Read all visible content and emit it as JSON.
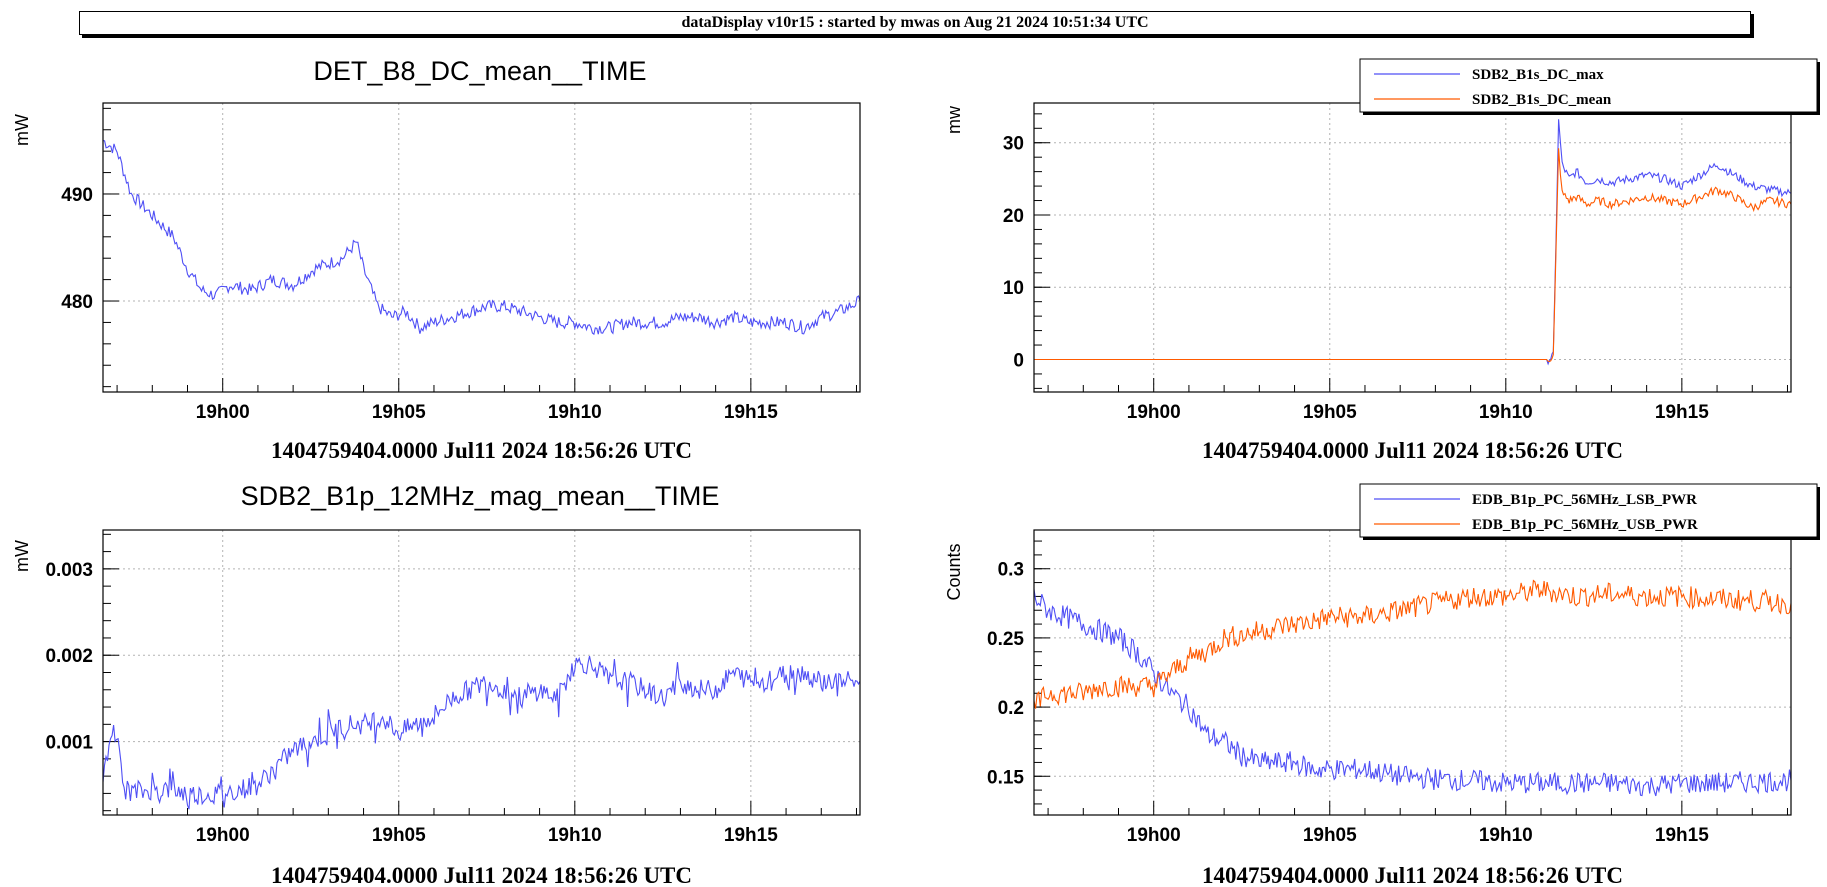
{
  "banner": "dataDisplay v10r15 : started by mwas on Aug 21 2024 10:51:34 UTC",
  "colors": {
    "blue": "#4f4ff5",
    "orange": "#ff5a00",
    "grid": "#b3b3b3"
  },
  "chart_data": [
    {
      "type": "line",
      "title": "DET_B8_DC_mean__TIME",
      "ylabel": "mW",
      "xlabel": "1404759404.0000 Jul11 2024 18:56:26 UTC",
      "x_ticks": [
        "19h00",
        "19h05",
        "19h10",
        "19h15"
      ],
      "x_range_min": [
        -3.4,
        18.1
      ],
      "y_ticks": [
        480,
        490
      ],
      "y_tick_labels": [
        "480",
        "490"
      ],
      "ylim": [
        471.5,
        498.5
      ],
      "legend": [],
      "series": [
        {
          "name": "DET_B8_DC_mean",
          "color": "#4f4ff5",
          "x": [
            -3.4,
            -3.0,
            -2.6,
            -2.0,
            -1.4,
            -1.0,
            -0.6,
            -0.2,
            0.2,
            0.8,
            1.4,
            2.0,
            2.6,
            3.0,
            3.4,
            3.8,
            4.0,
            4.4,
            4.8,
            5.2,
            5.6,
            6.0,
            6.5,
            7.0,
            7.5,
            8.0,
            8.5,
            9.0,
            9.5,
            10.0,
            10.5,
            11.0,
            11.5,
            12.0,
            12.5,
            13.0,
            13.5,
            14.0,
            14.5,
            15.0,
            15.5,
            16.0,
            16.5,
            17.0,
            17.5,
            18.1
          ],
          "y": [
            495,
            494,
            490,
            488,
            486,
            483,
            481,
            480.5,
            481.5,
            481,
            482,
            481.5,
            483,
            483.5,
            484,
            485.5,
            483,
            479.5,
            478.5,
            479,
            477.5,
            478,
            478.5,
            479,
            479.5,
            479.5,
            479,
            478.5,
            478,
            478,
            477.5,
            477.5,
            478,
            478,
            478,
            478.5,
            478.5,
            478,
            478.5,
            478,
            478,
            478,
            477.5,
            478.5,
            479,
            480
          ]
        }
      ]
    },
    {
      "type": "line",
      "title": "",
      "ylabel": "mw",
      "xlabel": "1404759404.0000 Jul11 2024 18:56:26 UTC",
      "x_ticks": [
        "19h00",
        "19h05",
        "19h10",
        "19h15"
      ],
      "x_range_min": [
        -3.4,
        18.1
      ],
      "y_ticks": [
        0,
        10,
        20,
        30
      ],
      "y_tick_labels": [
        "0",
        "10",
        "20",
        "30"
      ],
      "ylim": [
        -4.5,
        35.5
      ],
      "legend": [
        "SDB2_B1s_DC_max",
        "SDB2_B1s_DC_mean"
      ],
      "series": [
        {
          "name": "SDB2_B1s_DC_max",
          "color": "#4f4ff5",
          "x": [
            -3.4,
            11.2,
            11.35,
            11.5,
            11.6,
            11.8,
            12.0,
            12.3,
            12.6,
            13.0,
            13.5,
            14.0,
            14.5,
            15.0,
            15.5,
            16.0,
            16.5,
            17.0,
            17.5,
            18.1
          ],
          "y": [
            0,
            0,
            0.5,
            33,
            27,
            25,
            26,
            24.5,
            25,
            24.5,
            25,
            25.5,
            25,
            24,
            25.5,
            27,
            25.5,
            24,
            23.5,
            23
          ]
        },
        {
          "name": "SDB2_B1s_DC_mean",
          "color": "#ff5a00",
          "x": [
            -3.4,
            11.2,
            11.35,
            11.5,
            11.6,
            11.8,
            12.0,
            12.3,
            12.6,
            13.0,
            13.5,
            14.0,
            14.5,
            15.0,
            15.5,
            16.0,
            16.5,
            17.0,
            17.5,
            18.1
          ],
          "y": [
            0,
            0,
            0.5,
            29,
            23,
            22,
            22.5,
            21.5,
            22,
            21.5,
            22,
            22.5,
            22,
            21.5,
            22.5,
            23.5,
            22.5,
            21,
            22,
            21.5
          ]
        }
      ]
    },
    {
      "type": "line",
      "title": "SDB2_B1p_12MHz_mag_mean__TIME",
      "ylabel": "mW",
      "xlabel": "1404759404.0000 Jul11 2024 18:56:26 UTC",
      "x_ticks": [
        "19h00",
        "19h05",
        "19h10",
        "19h15"
      ],
      "x_range_min": [
        -3.4,
        18.1
      ],
      "y_ticks": [
        0.001,
        0.002,
        0.003
      ],
      "y_tick_labels": [
        "0.001",
        "0.002",
        "0.003"
      ],
      "ylim": [
        0.00015,
        0.00345
      ],
      "legend": [],
      "series": [
        {
          "name": "SDB2_B1p_12MHz_mag_mean",
          "color": "#4f4ff5",
          "x": [
            -3.4,
            -3.1,
            -2.8,
            -2.4,
            -2.0,
            -1.5,
            -1.0,
            -0.5,
            0.0,
            0.5,
            1.0,
            1.5,
            2.0,
            2.5,
            3.0,
            3.5,
            4.0,
            4.5,
            5.0,
            5.5,
            6.0,
            6.5,
            7.0,
            7.5,
            8.0,
            8.5,
            9.0,
            9.5,
            10.0,
            10.5,
            11.0,
            11.5,
            12.0,
            12.5,
            13.0,
            13.5,
            14.0,
            14.5,
            15.0,
            15.5,
            16.0,
            16.5,
            17.0,
            17.5,
            18.1
          ],
          "y": [
            0.0005,
            0.0013,
            0.00045,
            0.0004,
            0.00045,
            0.00045,
            0.0004,
            0.00038,
            0.0004,
            0.00045,
            0.0005,
            0.0007,
            0.0009,
            0.001,
            0.0011,
            0.0012,
            0.0012,
            0.0013,
            0.0011,
            0.0012,
            0.0013,
            0.0015,
            0.0016,
            0.0017,
            0.0016,
            0.0015,
            0.0016,
            0.0015,
            0.0019,
            0.0019,
            0.0017,
            0.0017,
            0.0016,
            0.0015,
            0.0017,
            0.0016,
            0.0016,
            0.0018,
            0.0017,
            0.0017,
            0.0018,
            0.0018,
            0.0017,
            0.0017,
            0.0017
          ]
        }
      ]
    },
    {
      "type": "line",
      "title": "",
      "ylabel": "Counts",
      "xlabel": "1404759404.0000 Jul11 2024 18:56:26 UTC",
      "x_ticks": [
        "19h00",
        "19h05",
        "19h10",
        "19h15"
      ],
      "x_range_min": [
        -3.4,
        18.1
      ],
      "y_ticks": [
        0.15,
        0.2,
        0.25,
        0.3
      ],
      "y_tick_labels": [
        "0.15",
        "0.2",
        "0.25",
        "0.3"
      ],
      "ylim": [
        0.122,
        0.328
      ],
      "legend": [
        "EDB_B1p_PC_56MHz_LSB_PWR",
        "EDB_B1p_PC_56MHz_USB_PWR"
      ],
      "series": [
        {
          "name": "EDB_B1p_PC_56MHz_LSB_PWR",
          "color": "#4f4ff5",
          "x": [
            -3.4,
            -3.0,
            -2.5,
            -2.0,
            -1.5,
            -1.0,
            -0.5,
            0.0,
            0.5,
            1.0,
            1.5,
            2.0,
            2.5,
            3.0,
            3.5,
            4.0,
            4.5,
            5.0,
            5.5,
            6.0,
            7.0,
            8.0,
            9.0,
            10.0,
            11.0,
            12.0,
            13.0,
            14.0,
            15.0,
            16.0,
            17.0,
            18.1
          ],
          "y": [
            0.28,
            0.27,
            0.265,
            0.26,
            0.255,
            0.25,
            0.24,
            0.225,
            0.21,
            0.2,
            0.18,
            0.175,
            0.165,
            0.16,
            0.16,
            0.16,
            0.155,
            0.155,
            0.155,
            0.155,
            0.15,
            0.148,
            0.147,
            0.145,
            0.145,
            0.145,
            0.145,
            0.143,
            0.145,
            0.145,
            0.146,
            0.147
          ]
        },
        {
          "name": "EDB_B1p_PC_56MHz_USB_PWR",
          "color": "#ff5a00",
          "x": [
            -3.4,
            -3.0,
            -2.5,
            -2.0,
            -1.5,
            -1.0,
            -0.5,
            0.0,
            0.5,
            1.0,
            1.5,
            2.0,
            2.5,
            3.0,
            3.5,
            4.0,
            4.5,
            5.0,
            5.5,
            6.0,
            7.0,
            8.0,
            9.0,
            10.0,
            11.0,
            12.0,
            13.0,
            14.0,
            15.0,
            16.0,
            17.0,
            18.1
          ],
          "y": [
            0.2,
            0.21,
            0.21,
            0.21,
            0.215,
            0.215,
            0.215,
            0.215,
            0.225,
            0.235,
            0.24,
            0.25,
            0.252,
            0.255,
            0.258,
            0.26,
            0.262,
            0.265,
            0.265,
            0.265,
            0.27,
            0.275,
            0.28,
            0.28,
            0.285,
            0.28,
            0.282,
            0.28,
            0.28,
            0.278,
            0.277,
            0.275
          ]
        }
      ]
    }
  ]
}
